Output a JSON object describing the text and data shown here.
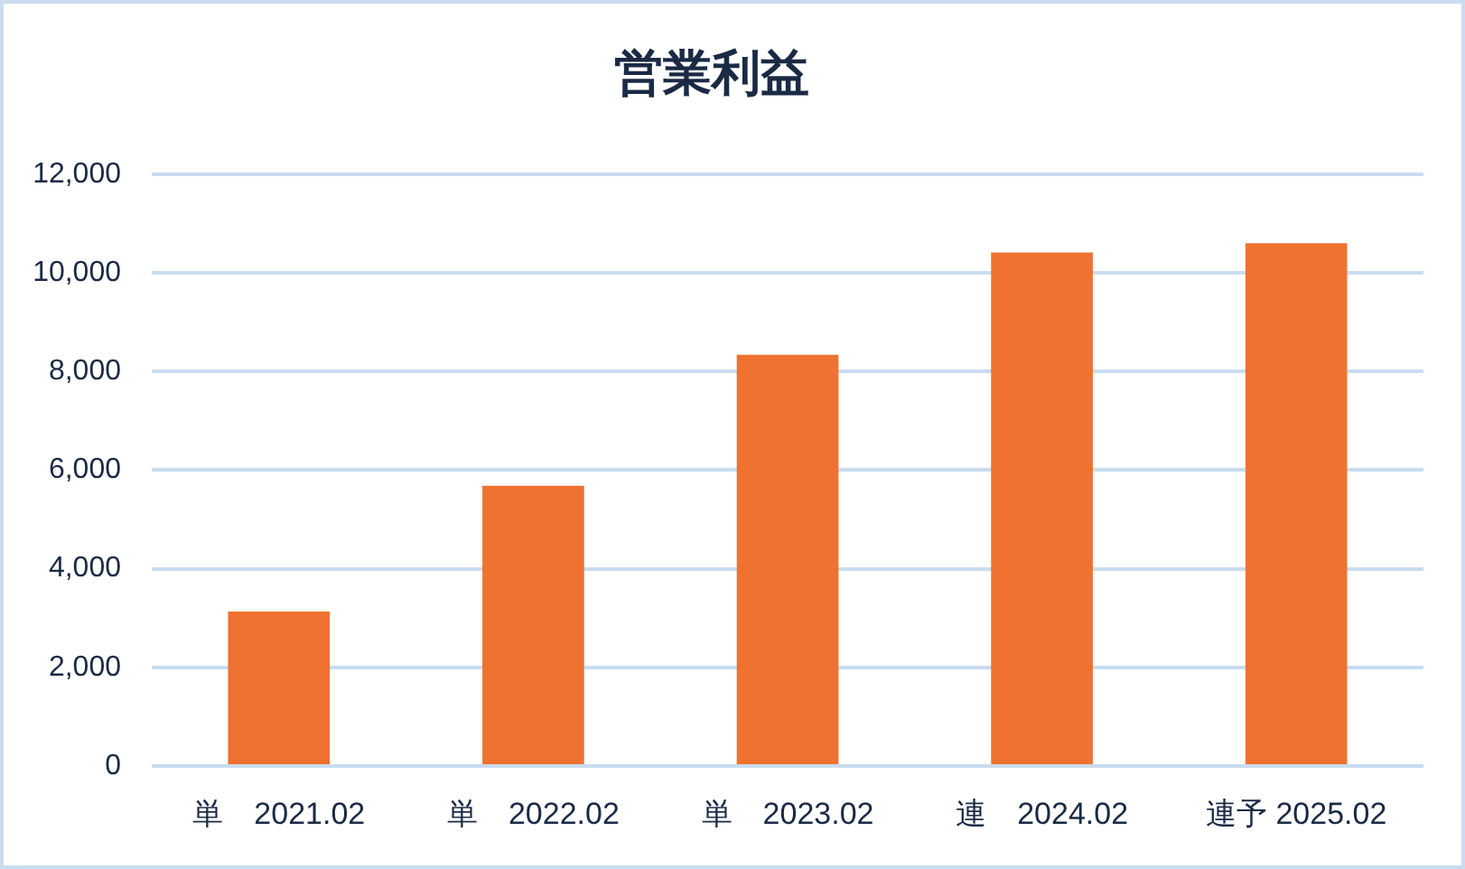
{
  "chart_data": {
    "type": "bar",
    "title": "営業利益",
    "categories": [
      "単　2021.02",
      "単　2022.02",
      "単　2023.02",
      "連　2024.02",
      "連予 2025.02"
    ],
    "values": [
      3130,
      5680,
      8340,
      10410,
      10600
    ],
    "color": "#ef7230",
    "ylim": [
      0,
      12000
    ],
    "yticks": [
      0,
      {
        "value": 2000,
        "label": "2,000"
      },
      {
        "value": 4000,
        "label": "4,000"
      },
      {
        "value": 6000,
        "label": "6,000"
      },
      {
        "value": 8000,
        "label": "8,000"
      },
      {
        "value": 10000,
        "label": "10,000"
      },
      {
        "value": 12000,
        "label": "12,000"
      }
    ],
    "grid": "y"
  }
}
